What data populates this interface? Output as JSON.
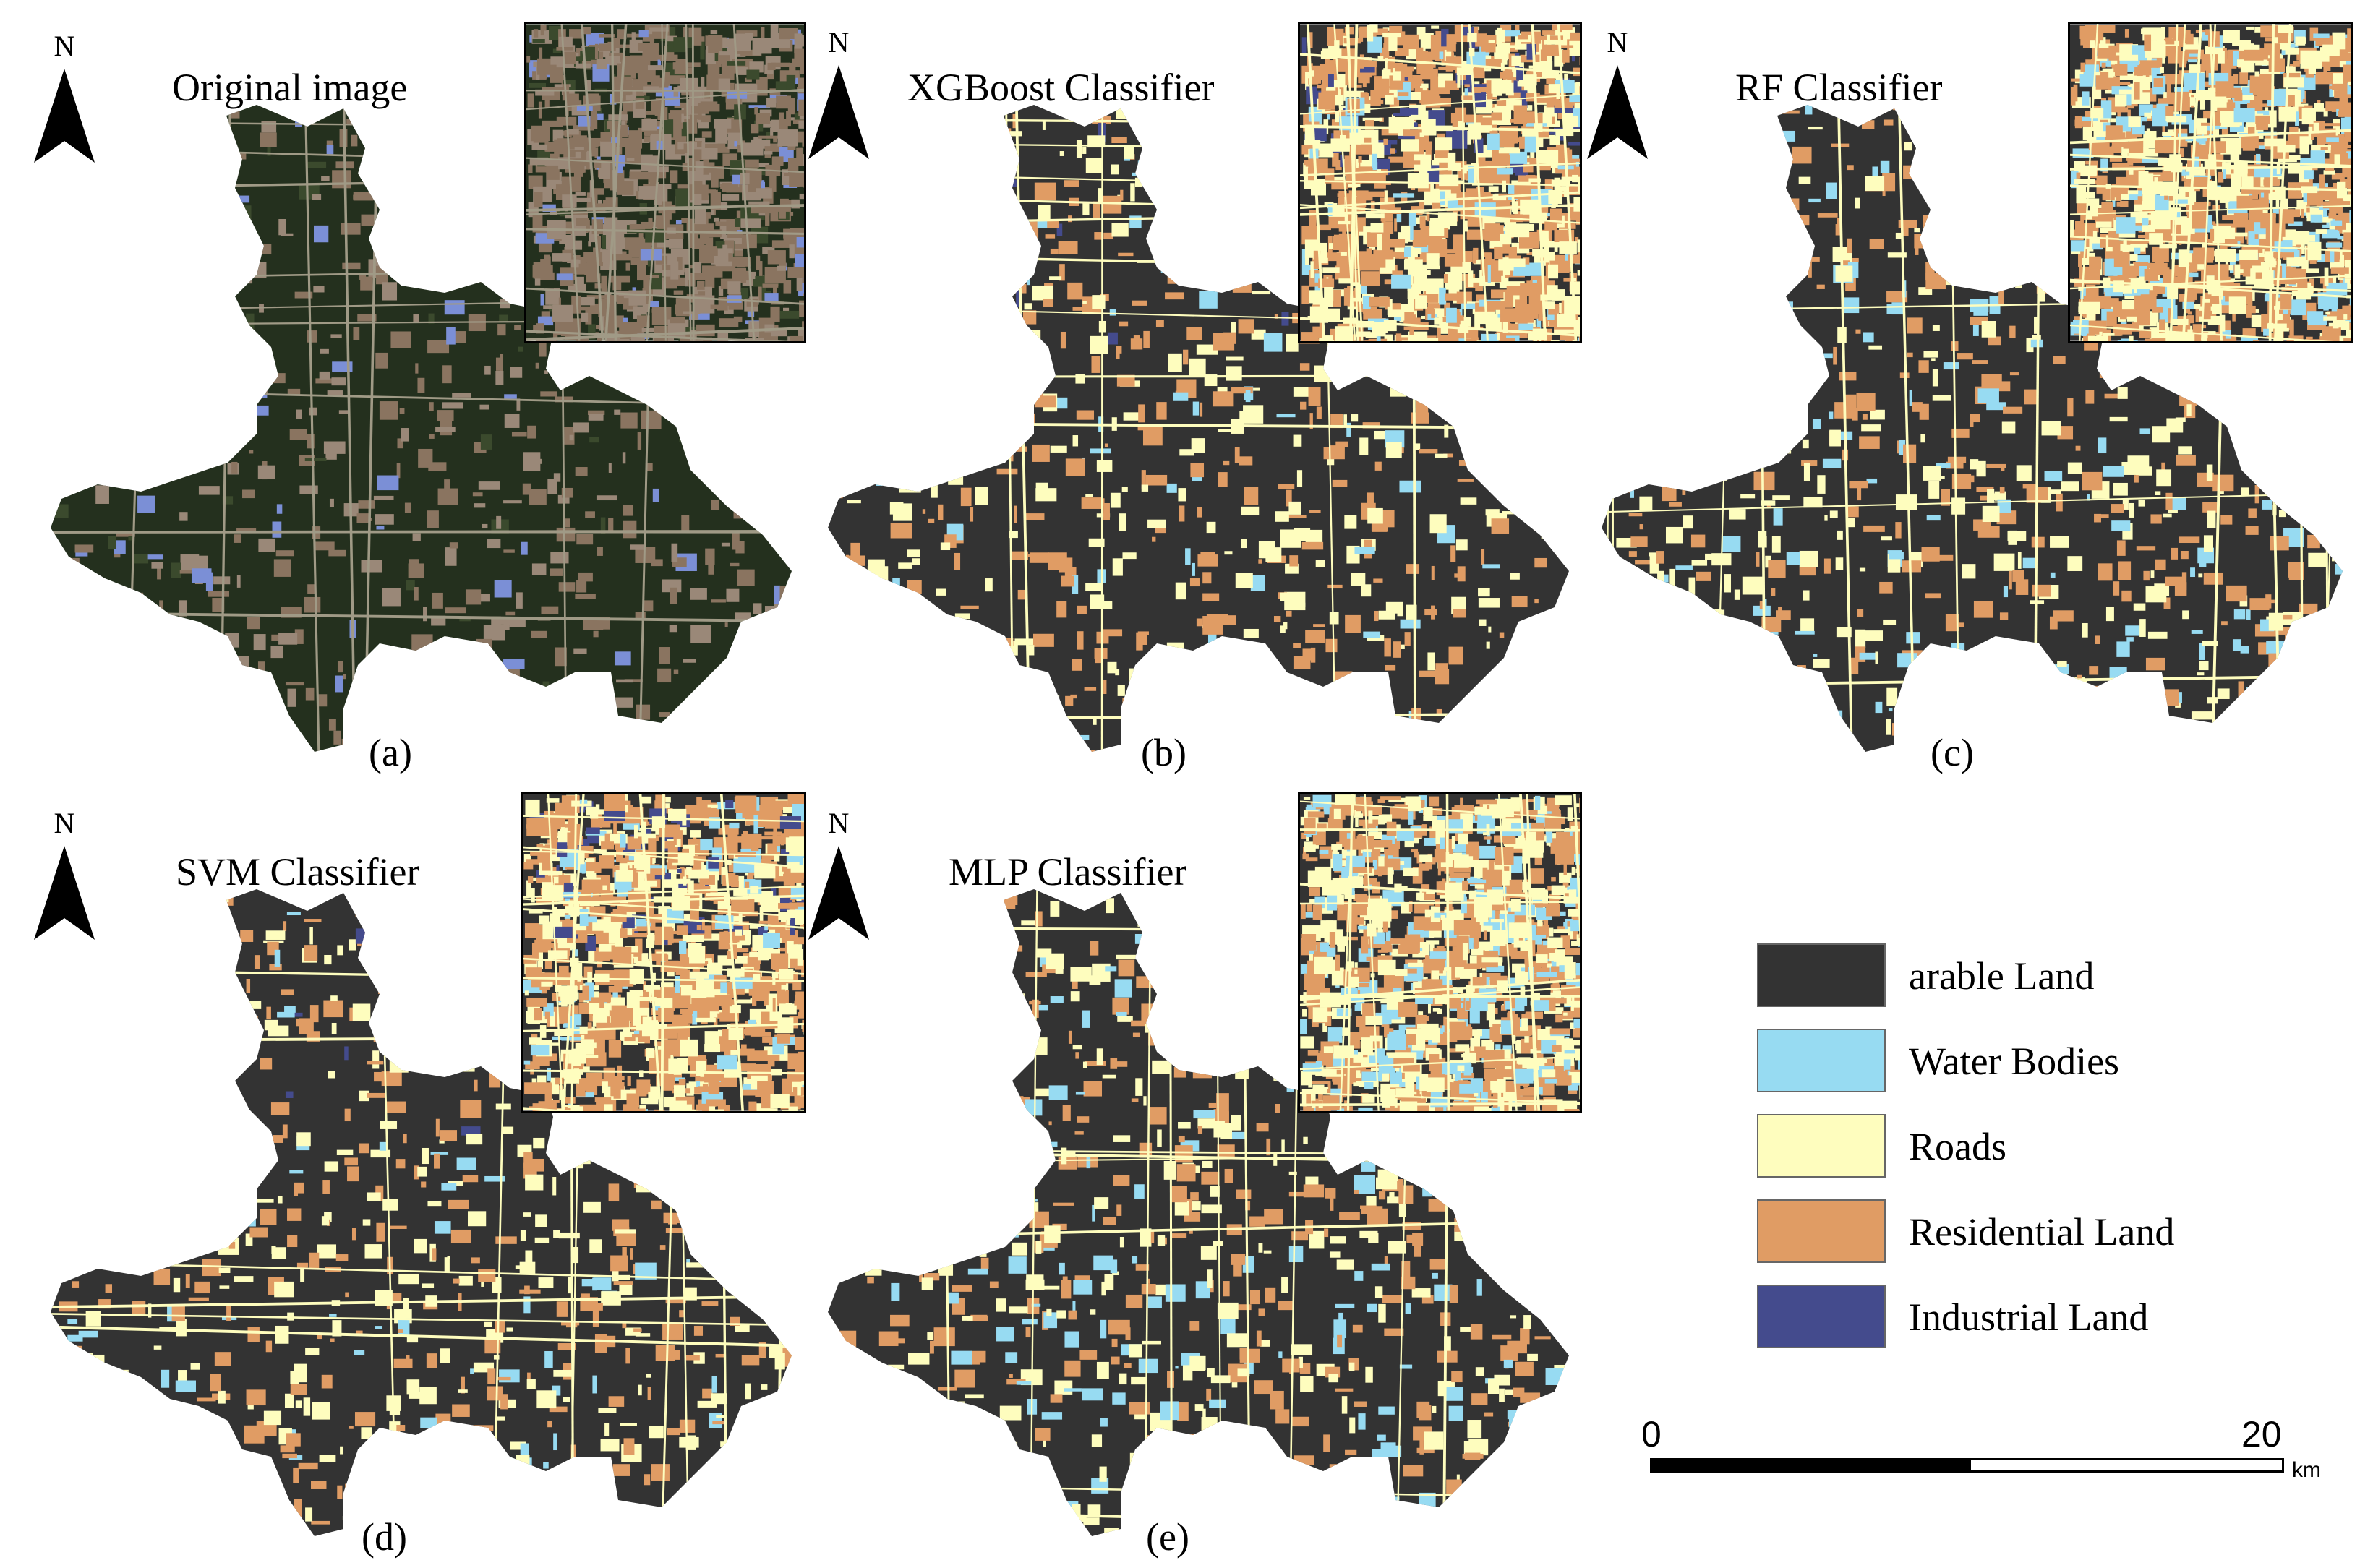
{
  "panels": [
    {
      "id": "a",
      "title": "Original image",
      "label": "(a)",
      "style": "satellite"
    },
    {
      "id": "b",
      "title": "XGBoost Classifier",
      "label": "(b)",
      "style": "classified"
    },
    {
      "id": "c",
      "title": "RF Classifier",
      "label": "(c)",
      "style": "classified-water"
    },
    {
      "id": "d",
      "title": "SVM Classifier",
      "label": "(d)",
      "style": "classified"
    },
    {
      "id": "e",
      "title": "MLP Classifier",
      "label": "(e)",
      "style": "classified-water"
    }
  ],
  "north_label": "N",
  "legend": [
    {
      "label": "arable Land",
      "color": "#333333"
    },
    {
      "label": "Water Bodies",
      "color": "#97dbf2"
    },
    {
      "label": "Roads",
      "color": "#fefdbe"
    },
    {
      "label": "Residential Land",
      "color": "#e09c64"
    },
    {
      "label": "Industrial Land",
      "color": "#444b8d"
    }
  ],
  "scale": {
    "start": "0",
    "end": "20",
    "unit": "km"
  },
  "colors": {
    "satellite_base": "#24301e",
    "satellite_patch": "#8a7460",
    "satellite_urban": "#9a8878",
    "satellite_industrial": "#7b8fd6"
  }
}
